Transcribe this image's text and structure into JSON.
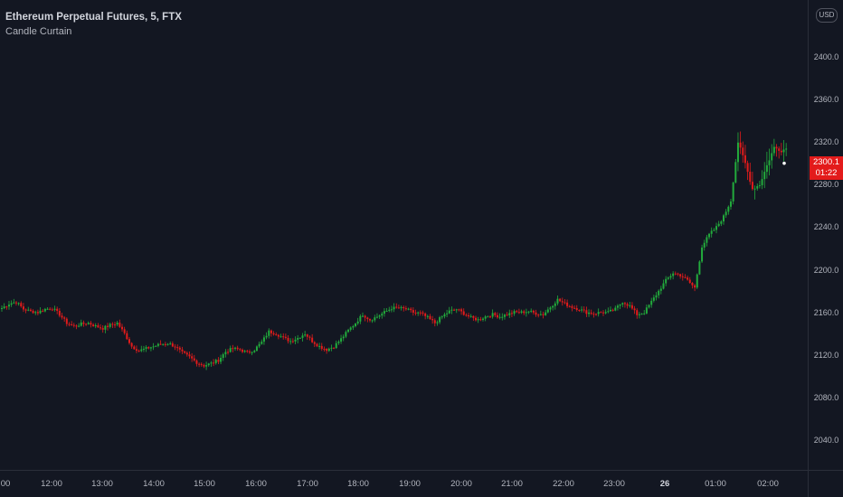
{
  "legend": {
    "symbol": "Ethereum Perpetual Futures, 5, FTX",
    "indicator": "Candle Curtain"
  },
  "price_axis": {
    "currency": "USD",
    "currency_badge_prefix": "2",
    "labels": [
      "2400.0",
      "2360.0",
      "2320.0",
      "2280.0",
      "2240.0",
      "2200.0",
      "2160.0",
      "2120.0",
      "2080.0",
      "2040.0"
    ],
    "last_price": "2300.1",
    "countdown": "01:22"
  },
  "time_axis": {
    "labels": [
      "00",
      "12:00",
      "13:00",
      "14:00",
      "15:00",
      "16:00",
      "17:00",
      "18:00",
      "19:00",
      "20:00",
      "21:00",
      "22:00",
      "23:00",
      "26",
      "01:00",
      "02:00"
    ],
    "bold_label": "26"
  },
  "colors": {
    "background": "#131722",
    "up": "#26a69a",
    "up_candle": "#22ab3c",
    "down_candle": "#e31b1b",
    "axis_text": "#b2b5be"
  },
  "chart_data": {
    "type": "candlestick",
    "interval": "5",
    "ylim": [
      2010,
      2440
    ],
    "last_price": 2300.1,
    "anchor_closes": [
      [
        0,
        2164
      ],
      [
        1,
        2168
      ],
      [
        2,
        2170
      ],
      [
        3,
        2163
      ],
      [
        4,
        2161
      ],
      [
        5,
        2160
      ],
      [
        6,
        2163
      ],
      [
        7,
        2164
      ],
      [
        8,
        2158
      ],
      [
        9,
        2150
      ],
      [
        10,
        2147
      ],
      [
        11,
        2149
      ],
      [
        12,
        2150
      ],
      [
        13,
        2147
      ],
      [
        14,
        2145
      ],
      [
        15,
        2148
      ],
      [
        16,
        2150
      ],
      [
        17,
        2140
      ],
      [
        18,
        2128
      ],
      [
        19,
        2124
      ],
      [
        20,
        2126
      ],
      [
        21,
        2128
      ],
      [
        22,
        2130
      ],
      [
        23,
        2131
      ],
      [
        24,
        2128
      ],
      [
        25,
        2122
      ],
      [
        26,
        2118
      ],
      [
        27,
        2113
      ],
      [
        28,
        2110
      ],
      [
        29,
        2112
      ],
      [
        30,
        2115
      ],
      [
        31,
        2123
      ],
      [
        32,
        2126
      ],
      [
        33,
        2125
      ],
      [
        34,
        2122
      ],
      [
        35,
        2125
      ],
      [
        36,
        2132
      ],
      [
        37,
        2142
      ],
      [
        38,
        2140
      ],
      [
        39,
        2136
      ],
      [
        40,
        2133
      ],
      [
        41,
        2136
      ],
      [
        42,
        2140
      ],
      [
        43,
        2133
      ],
      [
        44,
        2128
      ],
      [
        45,
        2125
      ],
      [
        46,
        2128
      ],
      [
        47,
        2135
      ],
      [
        48,
        2143
      ],
      [
        49,
        2150
      ],
      [
        50,
        2158
      ],
      [
        51,
        2153
      ],
      [
        52,
        2156
      ],
      [
        53,
        2160
      ],
      [
        54,
        2164
      ],
      [
        55,
        2164
      ],
      [
        56,
        2163
      ],
      [
        57,
        2160
      ],
      [
        58,
        2159
      ],
      [
        59,
        2155
      ],
      [
        60,
        2150
      ],
      [
        61,
        2156
      ],
      [
        62,
        2161
      ],
      [
        63,
        2163
      ],
      [
        64,
        2159
      ],
      [
        65,
        2155
      ],
      [
        66,
        2153
      ],
      [
        67,
        2156
      ],
      [
        68,
        2158
      ],
      [
        69,
        2156
      ],
      [
        70,
        2158
      ],
      [
        71,
        2160
      ],
      [
        72,
        2160
      ],
      [
        73,
        2161
      ],
      [
        74,
        2159
      ],
      [
        75,
        2158
      ],
      [
        76,
        2165
      ],
      [
        77,
        2172
      ],
      [
        78,
        2168
      ],
      [
        79,
        2165
      ],
      [
        80,
        2163
      ],
      [
        81,
        2160
      ],
      [
        82,
        2159
      ],
      [
        83,
        2160
      ],
      [
        84,
        2160
      ],
      [
        85,
        2163
      ],
      [
        86,
        2170
      ],
      [
        87,
        2166
      ],
      [
        88,
        2158
      ],
      [
        89,
        2160
      ],
      [
        90,
        2170
      ],
      [
        91,
        2180
      ],
      [
        92,
        2190
      ],
      [
        93,
        2197
      ],
      [
        94,
        2195
      ],
      [
        95,
        2190
      ],
      [
        96,
        2183
      ],
      [
        97,
        2222
      ],
      [
        98,
        2233
      ],
      [
        99,
        2240
      ],
      [
        100,
        2250
      ],
      [
        101,
        2265
      ],
      [
        102,
        2320
      ],
      [
        103,
        2300
      ],
      [
        104,
        2276
      ],
      [
        105,
        2280
      ],
      [
        106,
        2298
      ],
      [
        107,
        2315
      ],
      [
        108,
        2312
      ],
      [
        109,
        2315
      ],
      [
        110,
        2300
      ],
      [
        111,
        2300
      ]
    ]
  }
}
